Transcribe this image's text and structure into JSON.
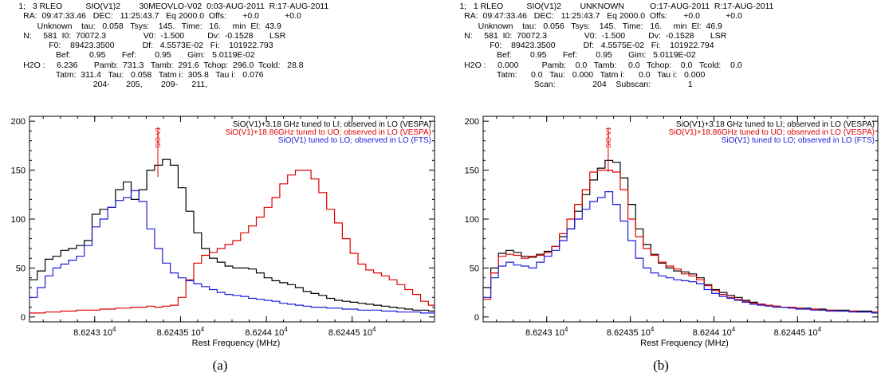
{
  "panels": [
    {
      "id": "a",
      "caption": "(a)",
      "header_lines": [
        "        1;   3 RLEO          SIO(V1)2        30MEOVLO-V02  0:03-AUG-2011  R:17-AUG-2011",
        "          RA:  09:47:33.46   DEC:   11:25:43.7   Eq 2000.0  Offs:       +0.0           +0.0",
        "                Unknown    tau:   0.058   Tsys:    145.   Time:   16.     min  El:  43.9",
        "          N:     581  I0:  70072.3                V0:  -1.500          Dv:  -0.1528       LSR",
        "                     F0:    89423.3500            Df:   4.5573E-02   Fi:    101922.793",
        "                        Bef:        0.95       Fef:        0.95       Gim:   5.0119E-02",
        "          H2O :     6.236       Pamb:  731.3   Tamb:  291.6  Tchop:  296.0  Tcold:   28.8",
        "                        Tatm:  311.4   Tau:   0.058   Tatm i:  305.8   Tau i:   0.076",
        "                                        204-       205,        209-      211,"
      ]
    },
    {
      "id": "b",
      "caption": "(b)",
      "header_lines": [
        "        1;   1 RLEO          SIO(V1)2        UNKNOWN           O:17-AUG-2011  R:17-AUG-2011",
        "          RA:  09:47:33.46   DEC:   11:25:43.7   Eq 2000.0  Offs:       +0.0           +0.0",
        "                Unknown    tau:   0.056   Tsys:    145.   Time:   16.     min  El:  46.9",
        "          N:     581  I0:  70072.3                V0:  -1.500          Dv:  -0.1528       LSR",
        "                     F0:    89423.3500            Df:   4.5575E-02   Fi:    101922.794",
        "                        Bef:        0.95       Fef:        0.95       Gim:   5.0119E-02",
        "          H2O :     0.000          Pamb:    0.0   Tamb:     0.0   Tchop:    0.0   Tcold:    0.0",
        "                        Tatm:      0.0   Tau:   0.000   Tatm i:      0.0   Tau i:   0.000",
        "                                        Scan:                204    Subscan:                1"
      ]
    }
  ],
  "chart_data": [
    {
      "type": "line",
      "step": true,
      "xlabel": "Rest Frequency (MHz)",
      "ylabel": "",
      "xlim": [
        86242.62,
        86244.98
      ],
      "ylim": [
        -5,
        205
      ],
      "yticks": [
        0,
        50,
        100,
        150,
        200
      ],
      "xticks": [
        {
          "value": 86243.0,
          "label": "8.6243 10",
          "exp": "4"
        },
        {
          "value": 86243.5,
          "label": "8.62435 10",
          "exp": "4"
        },
        {
          "value": 86244.0,
          "label": "8.6244 10",
          "exp": "4"
        },
        {
          "value": 86244.5,
          "label": "8.62445 10",
          "exp": "4"
        }
      ],
      "minor_step": 0.1,
      "line_marker": {
        "label": "SIO-V1",
        "x": 86243.368,
        "y_from": 143,
        "y_to": 194,
        "color": "#e00000"
      },
      "legend_position": "top-right",
      "series": [
        {
          "name": "SiO(V1)+3.18 GHz tuned to LI; observed in LO (VESPA)",
          "color": "#000000",
          "x0": 86242.62,
          "dx": 0.04557,
          "values": [
            38,
            47,
            59,
            62,
            68,
            70,
            73,
            78,
            105,
            110,
            112,
            130,
            138,
            120,
            130,
            150,
            155,
            161,
            155,
            132,
            108,
            86,
            70,
            60,
            56,
            52,
            50,
            50,
            49,
            45,
            40,
            37,
            35,
            33,
            30,
            26,
            24,
            22,
            19,
            17,
            16,
            15,
            14,
            13,
            12,
            11,
            10,
            9,
            8,
            7,
            7,
            6
          ]
        },
        {
          "name": "SiO(V1)+18.86GHz tuned to UO; observed in LO (VESPA)",
          "color": "#e00000",
          "x0": 86242.62,
          "dx": 0.04557,
          "values": [
            4,
            4,
            5,
            5,
            6,
            6,
            7,
            7,
            7,
            8,
            8,
            9,
            9,
            10,
            10,
            11,
            10,
            11,
            12,
            20,
            38,
            55,
            63,
            66,
            70,
            74,
            78,
            86,
            93,
            102,
            112,
            122,
            136,
            145,
            150,
            150,
            141,
            127,
            110,
            96,
            80,
            65,
            54,
            48,
            45,
            42,
            38,
            33,
            28,
            23,
            16,
            12
          ]
        },
        {
          "name": "SiO(V1) tuned to LO; observed in LO (FTS)",
          "color": "#1c1cdc",
          "x0": 86242.62,
          "dx": 0.04557,
          "values": [
            20,
            30,
            42,
            50,
            54,
            58,
            62,
            73,
            92,
            100,
            112,
            119,
            122,
            129,
            118,
            90,
            70,
            55,
            45,
            40,
            37,
            34,
            31,
            28,
            25,
            23,
            22,
            21,
            19,
            18,
            17,
            16,
            14,
            13,
            12,
            11,
            10,
            10,
            9,
            9,
            8,
            8,
            7,
            7,
            7,
            6,
            6,
            5,
            5,
            5,
            4,
            4
          ]
        }
      ]
    },
    {
      "type": "line",
      "step": true,
      "xlabel": "Rest Frequency (MHz)",
      "ylabel": "",
      "xlim": [
        86242.62,
        86244.98
      ],
      "ylim": [
        -5,
        205
      ],
      "yticks": [
        0,
        50,
        100,
        150,
        200
      ],
      "xticks": [
        {
          "value": 86243.0,
          "label": "8.6243 10",
          "exp": "4"
        },
        {
          "value": 86243.5,
          "label": "8.62435 10",
          "exp": "4"
        },
        {
          "value": 86244.0,
          "label": "8.6244 10",
          "exp": "4"
        },
        {
          "value": 86244.5,
          "label": "8.62445 10",
          "exp": "4"
        }
      ],
      "minor_step": 0.1,
      "line_marker": {
        "label": "SIO-V1",
        "x": 86243.368,
        "y_from": 148,
        "y_to": 194,
        "color": "#e00000"
      },
      "legend_position": "top-right",
      "series": [
        {
          "name": "SiO(V1)+3.18 GHz tuned to LI; observed in LO (VESPA)",
          "color": "#000000",
          "x0": 86242.62,
          "dx": 0.04557,
          "values": [
            30,
            50,
            65,
            68,
            66,
            62,
            61,
            64,
            67,
            72,
            82,
            90,
            108,
            125,
            140,
            152,
            160,
            158,
            142,
            115,
            90,
            74,
            64,
            55,
            50,
            47,
            46,
            44,
            40,
            33,
            28,
            25,
            22,
            20,
            17,
            15,
            13,
            12,
            11,
            10,
            10,
            9,
            9,
            8,
            8,
            7,
            7,
            7,
            6,
            6,
            6,
            5
          ]
        },
        {
          "name": "SiO(V1)+18.86GHz tuned to UO; observed in LO (VESPA)",
          "color": "#e00000",
          "x0": 86242.62,
          "dx": 0.04557,
          "values": [
            18,
            45,
            62,
            64,
            63,
            60,
            62,
            63,
            66,
            72,
            85,
            100,
            115,
            130,
            148,
            150,
            150,
            148,
            130,
            100,
            82,
            70,
            63,
            56,
            52,
            49,
            44,
            42,
            38,
            32,
            27,
            23,
            20,
            18,
            16,
            14,
            13,
            12,
            11,
            10,
            10,
            9,
            8,
            8,
            7,
            7,
            6,
            6,
            6,
            5,
            5,
            5
          ]
        },
        {
          "name": "SiO(V1) tuned to LO; observed in LO (FTS)",
          "color": "#1c1cdc",
          "x0": 86242.62,
          "dx": 0.04557,
          "values": [
            20,
            40,
            52,
            56,
            53,
            52,
            50,
            56,
            62,
            68,
            78,
            90,
            100,
            110,
            118,
            122,
            128,
            115,
            98,
            78,
            60,
            50,
            45,
            42,
            40,
            38,
            37,
            36,
            34,
            28,
            24,
            21,
            19,
            17,
            15,
            13,
            12,
            11,
            10,
            10,
            9,
            8,
            8,
            7,
            7,
            6,
            6,
            6,
            5,
            5,
            5,
            4
          ]
        }
      ]
    }
  ]
}
